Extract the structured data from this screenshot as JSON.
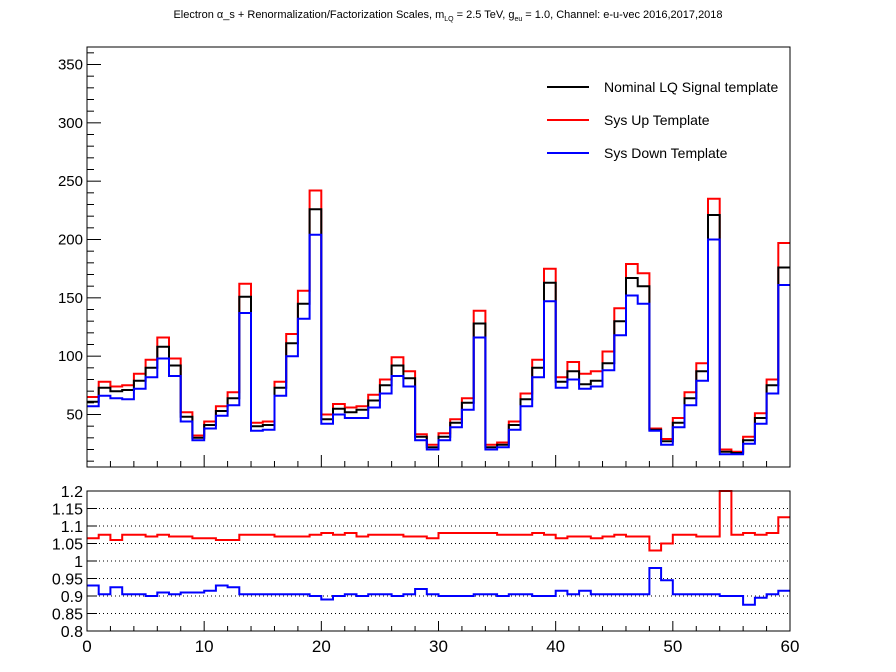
{
  "title": {
    "prefix": "Electron α_s + Renormalization/Factorization Scales, m",
    "sub1": "LQ",
    "mid": " = 2.5 TeV, g",
    "sub2": "eu",
    "suffix": " = 1.0, Channel: e-u-vec 2016,2017,2018"
  },
  "colors": {
    "nominal": "#000000",
    "up": "#ff0000",
    "down": "#0000ff"
  },
  "chart_data": [
    {
      "type": "line",
      "step": true,
      "xlim": [
        0,
        60
      ],
      "ylim": [
        5,
        365
      ],
      "yticks": [
        50,
        100,
        150,
        200,
        250,
        300,
        350
      ],
      "legend": "top-right",
      "bin_edges": [
        0,
        1,
        2,
        3,
        4,
        5,
        6,
        7,
        8,
        9,
        10,
        11,
        12,
        13,
        14,
        15,
        16,
        17,
        18,
        19,
        20,
        21,
        22,
        23,
        24,
        25,
        26,
        27,
        28,
        29,
        30,
        31,
        32,
        33,
        34,
        35,
        36,
        37,
        38,
        39,
        40,
        41,
        42,
        43,
        44,
        45,
        46,
        47,
        48,
        49,
        50,
        51,
        52,
        53,
        54,
        55,
        56,
        57,
        58,
        59,
        60
      ],
      "series": [
        {
          "name": "Nominal LQ Signal template",
          "color": "#000000",
          "values": [
            61,
            73,
            70,
            71,
            79,
            90,
            108,
            92,
            48,
            30,
            41,
            53,
            64,
            151,
            40,
            41,
            73,
            111,
            145,
            226,
            46,
            55,
            52,
            54,
            62,
            75,
            92,
            81,
            31,
            22,
            31,
            43,
            60,
            128,
            22,
            24,
            41,
            63,
            90,
            163,
            78,
            87,
            76,
            79,
            94,
            130,
            167,
            160,
            37,
            27,
            43,
            64,
            87,
            221,
            18,
            17,
            28,
            47,
            75,
            176
          ]
        },
        {
          "name": "Sys Up Template",
          "color": "#ff0000",
          "values": [
            65,
            78,
            74,
            75,
            85,
            97,
            116,
            98,
            52,
            32,
            44,
            57,
            69,
            162,
            43,
            44,
            78,
            119,
            156,
            242,
            50,
            59,
            56,
            57,
            67,
            80,
            99,
            87,
            33,
            24,
            34,
            46,
            64,
            139,
            24,
            26,
            44,
            68,
            97,
            175,
            82,
            95,
            85,
            87,
            104,
            141,
            179,
            171,
            38,
            29,
            47,
            69,
            94,
            235,
            20,
            18,
            31,
            51,
            80,
            197
          ]
        },
        {
          "name": "Sys Down Template",
          "color": "#0000ff",
          "values": [
            57,
            66,
            64,
            63,
            72,
            82,
            98,
            83,
            44,
            28,
            38,
            49,
            58,
            137,
            36,
            37,
            66,
            100,
            132,
            204,
            42,
            50,
            47,
            47,
            56,
            68,
            83,
            74,
            28,
            20,
            28,
            39,
            54,
            116,
            20,
            22,
            37,
            57,
            82,
            147,
            73,
            80,
            72,
            74,
            88,
            118,
            152,
            145,
            36,
            24,
            39,
            58,
            79,
            200,
            16,
            16,
            25,
            42,
            68,
            161
          ]
        }
      ]
    },
    {
      "type": "line",
      "step": true,
      "xlim": [
        0,
        60
      ],
      "ylim": [
        0.8,
        1.2
      ],
      "xticks": [
        0,
        10,
        20,
        30,
        40,
        50,
        60
      ],
      "yticks": [
        0.8,
        0.85,
        0.9,
        0.95,
        1,
        1.05,
        1.1,
        1.15,
        1.2
      ],
      "ytick_labels": [
        "0.8",
        "0.85",
        "0.9",
        "0.95",
        "1",
        "1.05",
        "1.1",
        "1.15",
        "1.2"
      ],
      "xtick_labels": [
        "0",
        "10",
        "20",
        "30",
        "40",
        "50",
        "60"
      ],
      "grid": "horizontal dotted",
      "series": [
        {
          "name": "up/nominal",
          "color": "#ff0000",
          "values": [
            1.065,
            1.075,
            1.06,
            1.075,
            1.075,
            1.07,
            1.075,
            1.07,
            1.07,
            1.065,
            1.065,
            1.06,
            1.06,
            1.075,
            1.075,
            1.075,
            1.07,
            1.07,
            1.07,
            1.075,
            1.08,
            1.075,
            1.08,
            1.07,
            1.075,
            1.075,
            1.075,
            1.07,
            1.07,
            1.065,
            1.08,
            1.08,
            1.08,
            1.08,
            1.08,
            1.075,
            1.075,
            1.075,
            1.08,
            1.075,
            1.065,
            1.07,
            1.07,
            1.065,
            1.07,
            1.075,
            1.07,
            1.07,
            1.03,
            1.05,
            1.075,
            1.075,
            1.07,
            1.07,
            1.25,
            1.075,
            1.08,
            1.075,
            1.08,
            1.125
          ]
        },
        {
          "name": "down/nominal",
          "color": "#0000ff",
          "values": [
            0.93,
            0.905,
            0.925,
            0.905,
            0.905,
            0.9,
            0.91,
            0.905,
            0.91,
            0.91,
            0.915,
            0.93,
            0.925,
            0.905,
            0.905,
            0.905,
            0.905,
            0.905,
            0.905,
            0.9,
            0.89,
            0.9,
            0.905,
            0.9,
            0.905,
            0.905,
            0.9,
            0.905,
            0.92,
            0.905,
            0.9,
            0.9,
            0.9,
            0.905,
            0.905,
            0.9,
            0.905,
            0.905,
            0.9,
            0.9,
            0.915,
            0.905,
            0.915,
            0.905,
            0.905,
            0.905,
            0.905,
            0.905,
            0.98,
            0.945,
            0.905,
            0.905,
            0.905,
            0.905,
            0.9,
            0.9,
            0.875,
            0.895,
            0.905,
            0.915
          ]
        }
      ]
    }
  ]
}
